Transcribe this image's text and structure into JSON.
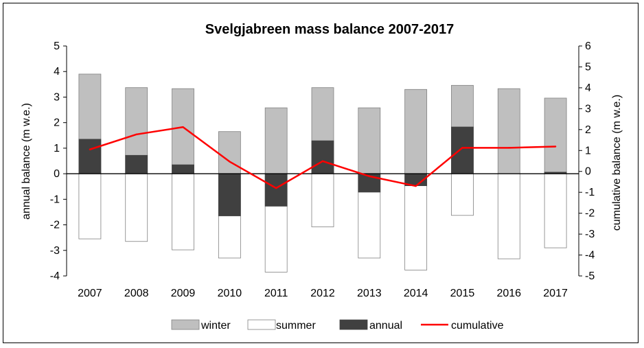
{
  "chart_data": {
    "type": "bar",
    "title": "Svelgjabreen mass balance 2007-2017",
    "categories": [
      "2007",
      "2008",
      "2009",
      "2010",
      "2011",
      "2012",
      "2013",
      "2014",
      "2015",
      "2016",
      "2017"
    ],
    "series": [
      {
        "name": "winter",
        "kind": "bar",
        "axis": "left",
        "color": "#bfbfbf",
        "values": [
          3.9,
          3.37,
          3.33,
          1.65,
          2.58,
          3.37,
          2.58,
          3.3,
          3.46,
          3.33,
          2.96
        ]
      },
      {
        "name": "summer",
        "kind": "bar",
        "axis": "left",
        "color": "#ffffff",
        "values": [
          -2.55,
          -2.65,
          -2.98,
          -3.3,
          -3.85,
          -2.08,
          -3.3,
          -3.77,
          -1.63,
          -3.33,
          -2.9
        ]
      },
      {
        "name": "annual",
        "kind": "bar",
        "axis": "left",
        "color": "#404040",
        "values": [
          1.35,
          0.72,
          0.35,
          -1.65,
          -1.27,
          1.29,
          -0.72,
          -0.47,
          1.83,
          0.0,
          0.06
        ]
      },
      {
        "name": "cumulative",
        "kind": "line",
        "axis": "right",
        "color": "#ff0000",
        "values": [
          1.05,
          1.77,
          2.12,
          0.47,
          -0.8,
          0.49,
          -0.23,
          -0.7,
          1.13,
          1.13,
          1.19
        ]
      }
    ],
    "ylabel": "annual balance (m w.e.)",
    "y2label": "cumulative balance (m w.e.)",
    "ylim": [
      -4,
      5
    ],
    "y2lim": [
      -5,
      6
    ],
    "yticks": [
      "5",
      "4",
      "3",
      "2",
      "1",
      "0",
      "-1",
      "-2",
      "-3",
      "-4"
    ],
    "y2ticks": [
      "6",
      "5",
      "4",
      "3",
      "2",
      "1",
      "0",
      "-1",
      "-2",
      "-3",
      "-4",
      "-5"
    ],
    "legend": [
      "winter",
      "summer",
      "annual",
      "cumulative"
    ],
    "legend_position": "bottom",
    "grid": false
  }
}
